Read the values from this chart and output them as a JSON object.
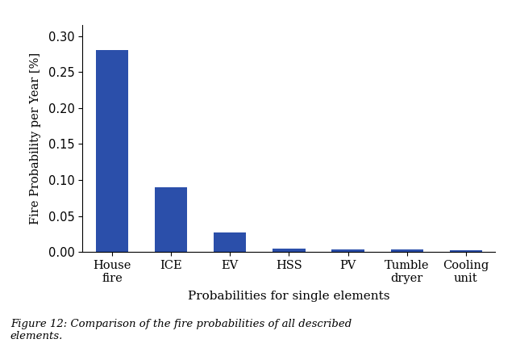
{
  "categories": [
    "House\nfire",
    "ICE",
    "EV",
    "HSS",
    "PV",
    "Tumble\ndryer",
    "Cooling\nunit"
  ],
  "values": [
    0.28,
    0.09,
    0.027,
    0.005,
    0.004,
    0.004,
    0.003
  ],
  "bar_color": "#2b4faa",
  "xlabel": "Probabilities for single elements",
  "ylabel": "Fire Probability per Year [%]",
  "ylim": [
    0,
    0.315
  ],
  "yticks": [
    0.0,
    0.05,
    0.1,
    0.15,
    0.2,
    0.25,
    0.3
  ],
  "caption_line1": "Figure 12: Comparison of the fire probabilities of all described",
  "caption_line2": "elements.",
  "background_color": "#ffffff",
  "xlabel_fontsize": 11,
  "ylabel_fontsize": 10.5,
  "tick_fontsize": 10.5,
  "caption_fontsize": 9.5,
  "bar_width": 0.55
}
